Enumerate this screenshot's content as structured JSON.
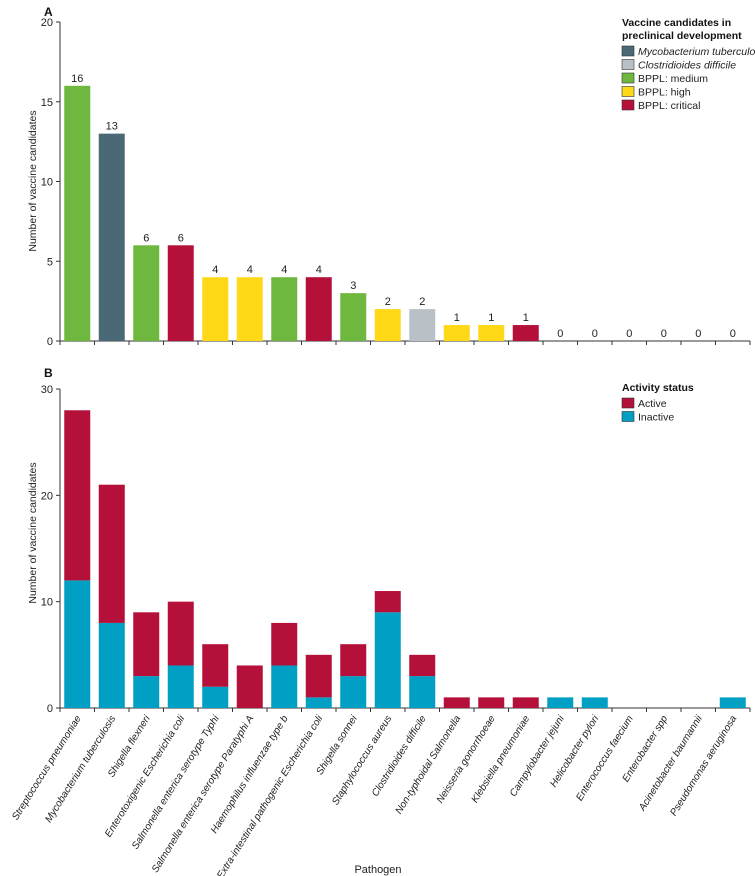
{
  "colors": {
    "mycobacterium": "#4a6876",
    "clostridioides": "#b9c1c7",
    "medium": "#6fb83f",
    "high": "#ffd817",
    "critical": "#b4103a",
    "active": "#b4103a",
    "inactive": "#009fc3"
  },
  "chart_data": [
    {
      "panel": "A",
      "type": "bar",
      "ylabel": "Number of vaccine candidates",
      "ylim": [
        0,
        20
      ],
      "yticks": [
        0,
        5,
        10,
        15,
        20
      ],
      "categories": [
        "Streptococcus pneumoniae",
        "Mycobacterium tuberculosis",
        "Shigella flexneri",
        "Enterotoxigenic Escherichia coli",
        "Salmonella enterica serotype Typhi",
        "Salmonella enterica serotype Paratyphi A",
        "Haemophilus influenzae type b",
        "Extra-intestinal pathogenic Escherichia coli",
        "Shigella sonnei",
        "Staphylococcus aureus",
        "Clostridioides difficile",
        "Non-typhoidal Salmonella",
        "Neisseria gonorrhoeae",
        "Klebsiella pneumoniae",
        "Campylobacter jejuni",
        "Helicobacter pylori",
        "Enterococcus faecium",
        "Enterobacter spp",
        "Acinetobacter baumannii",
        "Pseudomonas aeruginosa"
      ],
      "values": [
        16,
        13,
        6,
        6,
        4,
        4,
        4,
        4,
        3,
        2,
        2,
        1,
        1,
        1,
        0,
        0,
        0,
        0,
        0,
        0
      ],
      "value_labels": [
        "16",
        "13",
        "6",
        "6",
        "4",
        "4",
        "4",
        "4",
        "3",
        "2",
        "2",
        "1",
        "1",
        "1",
        "0",
        "0",
        "0",
        "0",
        "0",
        "0"
      ],
      "groups": [
        "medium",
        "mycobacterium",
        "medium",
        "critical",
        "high",
        "high",
        "medium",
        "critical",
        "medium",
        "high",
        "clostridioides",
        "high",
        "high",
        "critical",
        "medium",
        "medium",
        "high",
        "critical",
        "critical",
        "critical"
      ],
      "legend": {
        "title_line1": "Vaccine candidates in",
        "title_line2": "preclinical development",
        "items": [
          {
            "label": "Mycobacterium tuberculosis",
            "key": "mycobacterium",
            "italic": true
          },
          {
            "label": "Clostridioides difficile",
            "key": "clostridioides",
            "italic": true
          },
          {
            "label": "BPPL: medium",
            "key": "medium",
            "italic": false
          },
          {
            "label": "BPPL: high",
            "key": "high",
            "italic": false
          },
          {
            "label": "BPPL: critical",
            "key": "critical",
            "italic": false
          }
        ]
      }
    },
    {
      "panel": "B",
      "type": "bar",
      "stacked": true,
      "ylabel": "Number of vaccine candidates",
      "xlabel": "Pathogen",
      "ylim": [
        0,
        30
      ],
      "yticks": [
        0,
        10,
        20,
        30
      ],
      "categories": [
        "Streptococcus pneumoniae",
        "Mycobacterium tuberculosis",
        "Shigella flexneri",
        "Enterotoxigenic Escherichia coli",
        "Salmonella enterica serotype Typhi",
        "Salmonella enterica serotype Paratyphi A",
        "Haemophilus influenzae type b",
        "Extra-intestinal pathogenic Escherichia coli",
        "Shigella sonnei",
        "Staphylococcus aureus",
        "Clostridioides difficile",
        "Non-typhoidal Salmonella",
        "Neisseria gonorrhoeae",
        "Klebsiella pneumoniae",
        "Campylobacter jejuni",
        "Helicobacter pylori",
        "Enterococcus faecium",
        "Enterobacter spp",
        "Acinetobacter baumannii",
        "Pseudomonas aeruginosa"
      ],
      "series": [
        {
          "name": "Inactive",
          "key": "inactive",
          "values": [
            12,
            8,
            3,
            4,
            2,
            0,
            4,
            1,
            3,
            9,
            3,
            0,
            0,
            0,
            1,
            1,
            0,
            0,
            0,
            1
          ]
        },
        {
          "name": "Active",
          "key": "active",
          "values": [
            16,
            13,
            6,
            6,
            4,
            4,
            4,
            4,
            3,
            2,
            2,
            1,
            1,
            1,
            0,
            0,
            0,
            0,
            0,
            0
          ]
        }
      ],
      "legend": {
        "title": "Activity status",
        "items": [
          {
            "label": "Active",
            "key": "active"
          },
          {
            "label": "Inactive",
            "key": "inactive"
          }
        ]
      }
    }
  ]
}
